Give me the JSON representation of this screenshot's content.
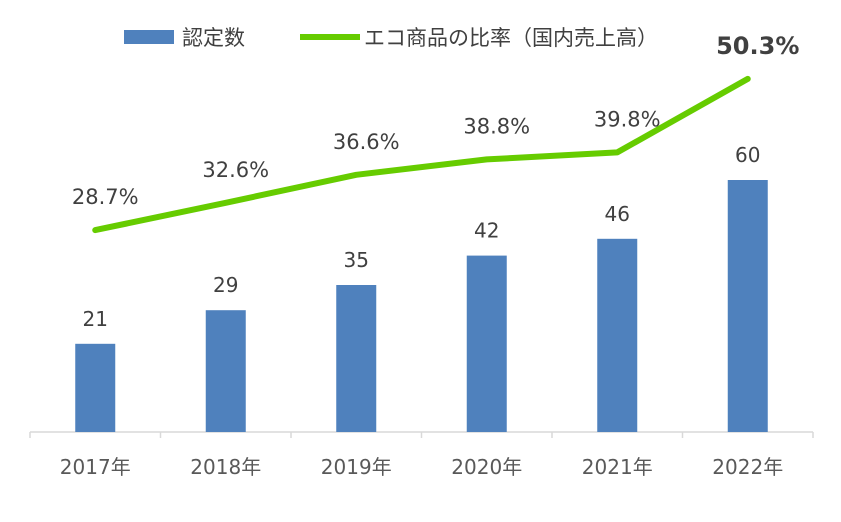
{
  "chart_data": {
    "type": "bar",
    "categories": [
      "2017年",
      "2018年",
      "2019年",
      "2020年",
      "2021年",
      "2022年"
    ],
    "series": [
      {
        "name": "認定数",
        "kind": "bar",
        "values": [
          21,
          29,
          35,
          42,
          46,
          60
        ],
        "labels": [
          "21",
          "29",
          "35",
          "42",
          "46",
          "60"
        ],
        "color": "#4f81bd"
      },
      {
        "name": "エコ商品の比率（国内売上高）",
        "kind": "line",
        "values": [
          28.7,
          32.6,
          36.6,
          38.8,
          39.8,
          50.3
        ],
        "labels": [
          "28.7%",
          "32.6%",
          "36.6%",
          "38.8%",
          "39.8%",
          "50.3%"
        ],
        "emphasized_label": "50.3%",
        "color": "#66cc00"
      }
    ],
    "legend_position": "top",
    "grid": false
  }
}
